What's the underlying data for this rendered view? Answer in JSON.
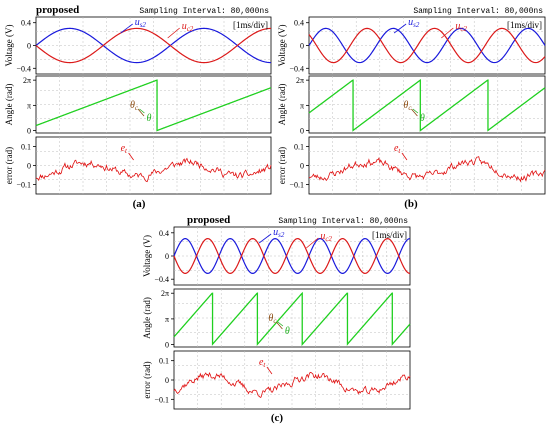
{
  "figure": {
    "panels": [
      {
        "id": "a",
        "caption": "(a)",
        "header_title": "proposed",
        "sampling_label": "Sampling Interval:",
        "sampling_value": "80,000ns",
        "div_label": "[1ms/div]"
      },
      {
        "id": "b",
        "caption": "(b)",
        "header_title": "",
        "sampling_label": "Sampling Interval:",
        "sampling_value": "80,000ns",
        "div_label": "[1ms/div]"
      },
      {
        "id": "c",
        "caption": "(c)",
        "header_title": "proposed",
        "sampling_label": "Sampling Interval:",
        "sampling_value": "80,000ns",
        "div_label": "[1ms/div]"
      }
    ]
  },
  "chart_data": [
    {
      "panel": "a",
      "type": "line",
      "subplots": [
        {
          "ylabel": "Voltage (V)",
          "yticks": [
            "0.4",
            "0",
            "−0.4"
          ],
          "ylim": [
            -0.5,
            0.5
          ],
          "series": [
            {
              "name": "u_s2",
              "label_main": "u",
              "label_sub": "s2",
              "color": "#1a1adc",
              "kind": "sine",
              "amplitude": 0.3,
              "cycles": 1.75,
              "phase_deg": 0
            },
            {
              "name": "u_c2",
              "label_main": "u",
              "label_sub": "c2",
              "color": "#dc1a1a",
              "kind": "sine",
              "amplitude": 0.3,
              "cycles": 1.75,
              "phase_deg": 180
            }
          ]
        },
        {
          "ylabel": "Angle (rad)",
          "yticks": [
            "2π",
            "π",
            "0"
          ],
          "ylim": [
            -0.3,
            6.8
          ],
          "series": [
            {
              "name": "θ_c",
              "label_main": "θ",
              "label_sub": "c",
              "color": "#20d020",
              "kind": "sawtooth",
              "cycles": 1.75,
              "offset": 0.1
            },
            {
              "name": "θ",
              "label_main": "θ",
              "label_sub": "",
              "color": "#20d020",
              "kind": "sawtooth",
              "cycles": 1.75,
              "offset": 0.1
            }
          ]
        },
        {
          "ylabel": "error (rad)",
          "yticks": [
            "0.1",
            "0",
            "−0.1"
          ],
          "ylim": [
            -0.15,
            0.15
          ],
          "series": [
            {
              "name": "e_t",
              "label_main": "e",
              "label_sub": "t",
              "color": "#e01010",
              "kind": "noise",
              "seed": 11,
              "base_amp": 0.04
            }
          ]
        }
      ]
    },
    {
      "panel": "b",
      "type": "line",
      "subplots": [
        {
          "ylabel": "Voltage (V)",
          "yticks": [
            "0.4",
            "0",
            "−0.4"
          ],
          "ylim": [
            -0.5,
            0.5
          ],
          "series": [
            {
              "name": "u_s2",
              "label_main": "u",
              "label_sub": "s2",
              "color": "#1a1adc",
              "kind": "sine",
              "amplitude": 0.3,
              "cycles": 3.5,
              "phase_deg": 0
            },
            {
              "name": "u_c2",
              "label_main": "u",
              "label_sub": "c2",
              "color": "#dc1a1a",
              "kind": "sine",
              "amplitude": 0.3,
              "cycles": 3.5,
              "phase_deg": 140
            }
          ]
        },
        {
          "ylabel": "Angle (rad)",
          "yticks": [
            "2π",
            "π",
            "0"
          ],
          "ylim": [
            -0.3,
            6.8
          ],
          "series": [
            {
              "name": "θ_c",
              "label_main": "θ",
              "label_sub": "c",
              "color": "#20d020",
              "kind": "sawtooth",
              "cycles": 3.5,
              "offset": 0.35
            },
            {
              "name": "θ",
              "label_main": "θ",
              "label_sub": "",
              "color": "#20d020",
              "kind": "sawtooth",
              "cycles": 3.5,
              "offset": 0.35
            }
          ]
        },
        {
          "ylabel": "error (rad)",
          "yticks": [
            "0.1",
            "0",
            "−0.1"
          ],
          "ylim": [
            -0.15,
            0.15
          ],
          "series": [
            {
              "name": "e_t",
              "label_main": "e",
              "label_sub": "t",
              "color": "#e01010",
              "kind": "noise",
              "seed": 23,
              "base_amp": 0.045
            }
          ]
        }
      ]
    },
    {
      "panel": "c",
      "type": "line",
      "subplots": [
        {
          "ylabel": "Voltage (V)",
          "yticks": [
            "0.4",
            "0",
            "−0.4"
          ],
          "ylim": [
            -0.5,
            0.5
          ],
          "series": [
            {
              "name": "u_s2",
              "label_main": "u",
              "label_sub": "s2",
              "color": "#1a1adc",
              "kind": "sine",
              "amplitude": 0.3,
              "cycles": 5.25,
              "phase_deg": 0
            },
            {
              "name": "u_c2",
              "label_main": "u",
              "label_sub": "c2",
              "color": "#dc1a1a",
              "kind": "sine",
              "amplitude": 0.3,
              "cycles": 5.25,
              "phase_deg": 180
            }
          ]
        },
        {
          "ylabel": "Angle (rad)",
          "yticks": [
            "2π",
            "π",
            "0"
          ],
          "ylim": [
            -0.3,
            6.8
          ],
          "series": [
            {
              "name": "θ_c",
              "label_main": "θ",
              "label_sub": "c",
              "color": "#20d020",
              "kind": "sawtooth",
              "cycles": 5.25,
              "offset": 0.15
            },
            {
              "name": "θ",
              "label_main": "θ",
              "label_sub": "",
              "color": "#20d020",
              "kind": "sawtooth",
              "cycles": 5.25,
              "offset": 0.15
            }
          ]
        },
        {
          "ylabel": "error (rad)",
          "yticks": [
            "0.1",
            "0",
            "−0.1"
          ],
          "ylim": [
            -0.15,
            0.15
          ],
          "series": [
            {
              "name": "e_t",
              "label_main": "e",
              "label_sub": "t",
              "color": "#e01010",
              "kind": "noise",
              "seed": 37,
              "base_amp": 0.05
            }
          ]
        }
      ]
    }
  ]
}
